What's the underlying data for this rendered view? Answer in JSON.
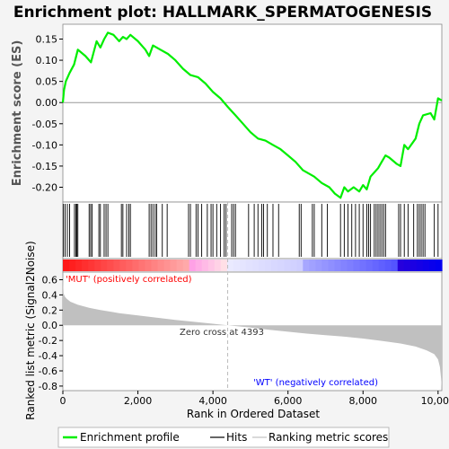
{
  "chart_data": {
    "type": "line",
    "title": "Enrichment plot: HALLMARK_SPERMATOGENESIS",
    "es_panel": {
      "ylabel": "Enrichment score (ES)",
      "ylim": [
        -0.235,
        0.185
      ],
      "yticks": [
        0.15,
        0.1,
        0.05,
        0.0,
        -0.05,
        -0.1,
        -0.15,
        -0.2
      ],
      "ytick_labels": [
        "0.15",
        "0.10",
        "0.05",
        "0.00",
        "-0.05",
        "-0.10",
        "-0.15",
        "-0.20"
      ],
      "series": [
        {
          "name": "Enrichment profile",
          "color": "#00ee00",
          "x": [
            0,
            30,
            80,
            180,
            300,
            400,
            600,
            750,
            900,
            1000,
            1100,
            1200,
            1350,
            1500,
            1600,
            1700,
            1800,
            2000,
            2200,
            2300,
            2400,
            2600,
            2800,
            3000,
            3200,
            3400,
            3600,
            3800,
            4000,
            4200,
            4393,
            4600,
            4800,
            5000,
            5200,
            5400,
            5600,
            5800,
            6000,
            6200,
            6400,
            6700,
            6900,
            7100,
            7250,
            7400,
            7500,
            7600,
            7750,
            7900,
            8000,
            8100,
            8200,
            8300,
            8400,
            8500,
            8600,
            8700,
            8900,
            9000,
            9100,
            9200,
            9400,
            9500,
            9600,
            9800,
            9900,
            10000,
            10100
          ],
          "y": [
            0.0,
            0.03,
            0.05,
            0.07,
            0.09,
            0.125,
            0.11,
            0.095,
            0.145,
            0.13,
            0.15,
            0.165,
            0.16,
            0.145,
            0.155,
            0.15,
            0.16,
            0.145,
            0.125,
            0.11,
            0.135,
            0.125,
            0.115,
            0.1,
            0.08,
            0.065,
            0.06,
            0.045,
            0.025,
            0.01,
            -0.01,
            -0.03,
            -0.05,
            -0.07,
            -0.085,
            -0.09,
            -0.1,
            -0.11,
            -0.125,
            -0.14,
            -0.16,
            -0.175,
            -0.19,
            -0.2,
            -0.215,
            -0.225,
            -0.2,
            -0.21,
            -0.2,
            -0.21,
            -0.195,
            -0.205,
            -0.175,
            -0.165,
            -0.155,
            -0.14,
            -0.125,
            -0.13,
            -0.145,
            -0.15,
            -0.1,
            -0.11,
            -0.085,
            -0.05,
            -0.03,
            -0.025,
            -0.04,
            0.01,
            0.005
          ]
        }
      ]
    },
    "hits": [
      15,
      60,
      120,
      180,
      310,
      350,
      370,
      400,
      700,
      740,
      780,
      960,
      1000,
      1100,
      1150,
      1200,
      1560,
      1600,
      1700,
      1760,
      1800,
      2300,
      2350,
      2400,
      2460,
      2500,
      2650,
      2780,
      3350,
      3400,
      3550,
      3600,
      3700,
      3850,
      3950,
      4000,
      4100,
      4200,
      4300,
      4350,
      4500,
      4550,
      4600,
      4950,
      5100,
      5200,
      5300,
      5350,
      5450,
      5600,
      5750,
      6300,
      6350,
      6650,
      6700,
      6900,
      7050,
      7400,
      7500,
      7600,
      7700,
      7800,
      7900,
      8000,
      8100,
      8150,
      8200,
      8300,
      8350,
      8400,
      8450,
      8500,
      8550,
      8600,
      8950,
      9000,
      9100,
      9200,
      9350,
      9450,
      9500,
      9550,
      9600,
      9650,
      9900,
      10000
    ],
    "metric_panel": {
      "ylabel": "Ranked list metric (Signal2Noise)",
      "ylim": [
        -0.86,
        0.7
      ],
      "yticks": [
        0.6,
        0.4,
        0.2,
        0.0,
        -0.2,
        -0.4,
        -0.6,
        -0.8
      ],
      "ytick_labels": [
        "0.6",
        "0.4",
        "0.2",
        "0.0",
        "-0.2",
        "-0.4",
        "-0.6",
        "-0.8"
      ],
      "series": [
        {
          "name": "Ranking metric scores",
          "color": "#c0c0c0",
          "x": [
            0,
            20,
            50,
            100,
            200,
            400,
            700,
            1000,
            1500,
            2000,
            2500,
            3000,
            3500,
            4000,
            4393,
            5000,
            5500,
            6000,
            6500,
            7000,
            7500,
            8000,
            8500,
            9000,
            9400,
            9700,
            9900,
            10000,
            10050,
            10080,
            10100
          ],
          "y": [
            0.62,
            0.42,
            0.38,
            0.35,
            0.31,
            0.27,
            0.23,
            0.2,
            0.16,
            0.13,
            0.1,
            0.07,
            0.045,
            0.02,
            0.0,
            -0.03,
            -0.06,
            -0.085,
            -0.11,
            -0.13,
            -0.15,
            -0.175,
            -0.205,
            -0.24,
            -0.28,
            -0.33,
            -0.38,
            -0.45,
            -0.55,
            -0.7,
            -0.84
          ]
        }
      ],
      "annotations": {
        "pos_label": "'MUT' (positively correlated)",
        "neg_label": "'WT' (negatively correlated)",
        "zero_cross": "Zero cross at 4393",
        "zero_cross_x": 4393
      }
    },
    "xaxis": {
      "xlabel": "Rank in Ordered Dataset",
      "xlim": [
        0,
        10100
      ],
      "xticks": [
        0,
        2000,
        4000,
        6000,
        8000,
        10000
      ],
      "xtick_labels": [
        "0",
        "2,000",
        "4,000",
        "6,000",
        "8,000",
        "10,000"
      ]
    },
    "legend": {
      "placement": "bottom",
      "entries": [
        "Enrichment profile",
        "Hits",
        "Ranking metric scores"
      ]
    },
    "colors": {
      "profile": "#00ee00",
      "hits": "#000000",
      "metric": "#c0c0c0",
      "pos_text": "#ff0000",
      "neg_text": "#0000ff",
      "zero_line": "#bbbbbb",
      "background": "#f4f4f4"
    }
  }
}
